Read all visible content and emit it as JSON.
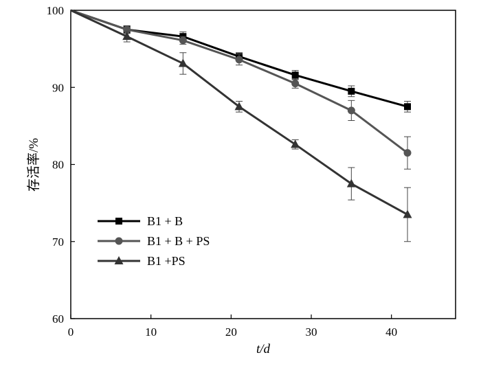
{
  "chart_data": {
    "type": "line",
    "xlabel": "t/d",
    "ylabel": "存活率/%",
    "xlim": [
      0,
      48
    ],
    "ylim": [
      60,
      100
    ],
    "xticks": [
      0,
      10,
      20,
      30,
      40
    ],
    "yticks": [
      60,
      70,
      80,
      90,
      100
    ],
    "legend_position": "lower-left",
    "grid": false,
    "series": [
      {
        "name": "B1 + B",
        "marker": "square",
        "color": "#000000",
        "x": [
          0,
          7,
          14,
          21,
          28,
          35,
          42
        ],
        "y": [
          100,
          97.5,
          96.6,
          94.0,
          91.6,
          89.5,
          87.5
        ],
        "err": [
          0,
          0.5,
          0.6,
          0.5,
          0.6,
          0.7,
          0.7
        ]
      },
      {
        "name": "B1 + B + PS",
        "marker": "circle",
        "color": "#555555",
        "x": [
          0,
          7,
          14,
          21,
          28,
          35,
          42
        ],
        "y": [
          100,
          97.5,
          96.1,
          93.6,
          90.5,
          87.0,
          81.5
        ],
        "err": [
          0,
          0.5,
          0.5,
          0.7,
          0.6,
          1.3,
          2.1
        ]
      },
      {
        "name": "B1  +PS",
        "marker": "triangle",
        "color": "#333333",
        "x": [
          0,
          7,
          14,
          21,
          28,
          35,
          42
        ],
        "y": [
          100,
          96.6,
          93.1,
          87.5,
          82.6,
          77.5,
          73.5
        ],
        "err": [
          0,
          0.7,
          1.4,
          0.7,
          0.6,
          2.1,
          3.5
        ]
      }
    ]
  }
}
